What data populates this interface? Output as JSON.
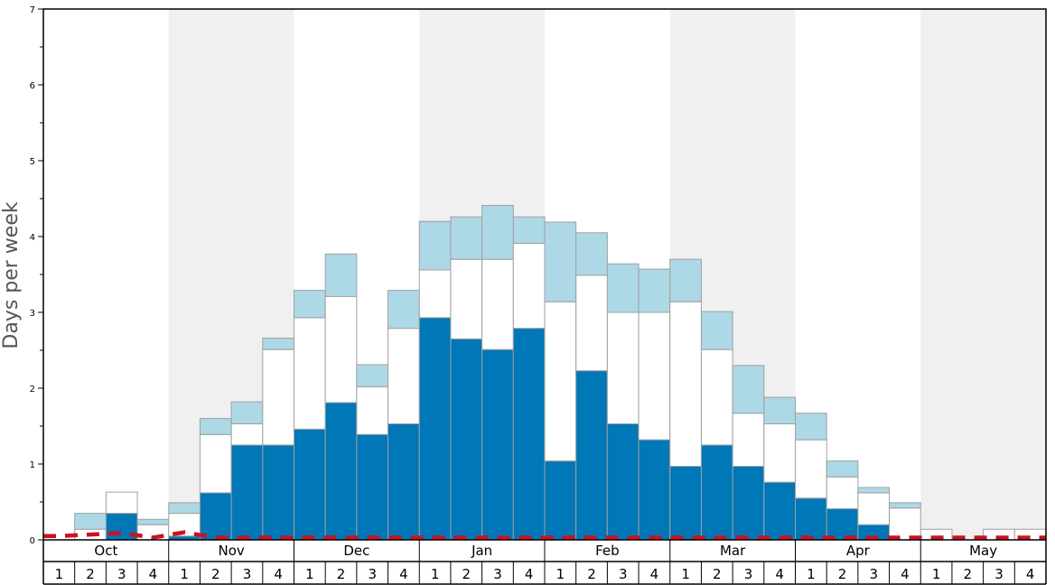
{
  "chart_data": {
    "type": "bar",
    "stacked": true,
    "title": "",
    "xlabel": "",
    "ylabel": "Days per week",
    "ylim": [
      0,
      7
    ],
    "yticks": [
      "0",
      "1",
      "2",
      "3",
      "4",
      "5",
      "6",
      "7"
    ],
    "months": [
      "Oct",
      "Nov",
      "Dec",
      "Jan",
      "Feb",
      "Mar",
      "Apr",
      "May"
    ],
    "week_labels": [
      "1",
      "2",
      "3",
      "4"
    ],
    "categories": [
      "Oct 1",
      "Oct 2",
      "Oct 3",
      "Oct 4",
      "Nov 1",
      "Nov 2",
      "Nov 3",
      "Nov 4",
      "Dec 1",
      "Dec 2",
      "Dec 3",
      "Dec 4",
      "Jan 1",
      "Jan 2",
      "Jan 3",
      "Jan 4",
      "Feb 1",
      "Feb 2",
      "Feb 3",
      "Feb 4",
      "Mar 1",
      "Mar 2",
      "Mar 3",
      "Mar 4",
      "Apr 1",
      "Apr 2",
      "Apr 3",
      "Apr 4",
      "May 1",
      "May 2",
      "May 3",
      "May 4"
    ],
    "series": [
      {
        "values": [
          0,
          0,
          0.35,
          0,
          0.05,
          0.62,
          1.25,
          1.25,
          1.46,
          1.81,
          1.39,
          1.53,
          2.93,
          2.65,
          2.51,
          2.79,
          1.04,
          2.23,
          1.53,
          1.32,
          0.97,
          1.25,
          0.97,
          0.76,
          0.55,
          0.41,
          0.2,
          0,
          0,
          0,
          0,
          0
        ]
      },
      {
        "values": [
          0,
          0.14,
          0.28,
          0.2,
          0.3,
          0.77,
          0.28,
          1.26,
          1.47,
          1.4,
          0.63,
          1.26,
          0.63,
          1.05,
          1.19,
          1.12,
          2.1,
          1.26,
          1.47,
          1.68,
          2.17,
          1.26,
          0.7,
          0.77,
          0.77,
          0.42,
          0.42,
          0.42,
          0.14,
          0,
          0.14,
          0.14
        ]
      },
      {
        "values": [
          0,
          0.21,
          0,
          0.07,
          0.14,
          0.21,
          0.29,
          0.15,
          0.36,
          0.56,
          0.29,
          0.5,
          0.64,
          0.56,
          0.71,
          0.35,
          1.05,
          0.56,
          0.64,
          0.57,
          0.56,
          0.5,
          0.63,
          0.35,
          0.35,
          0.21,
          0.07,
          0.07,
          0,
          0,
          0,
          0
        ]
      }
    ],
    "series_colors": [
      "#0077b6",
      "#ffffff",
      "#add8e6"
    ],
    "average_line": {
      "color": "#cc1122",
      "style": "dashed",
      "values": [
        0.05,
        0.07,
        0.09,
        0.03,
        0.1,
        0.03,
        0.03,
        0.03,
        0.03,
        0.03,
        0.03,
        0.03,
        0.03,
        0.03,
        0.03,
        0.03,
        0.03,
        0.03,
        0.03,
        0.03,
        0.03,
        0.03,
        0.03,
        0.03,
        0.03,
        0.03,
        0.03,
        0.03,
        0.03,
        0.03,
        0.03,
        0.03
      ]
    },
    "grid": false,
    "alternating_month_shading": true,
    "legend": "none"
  }
}
